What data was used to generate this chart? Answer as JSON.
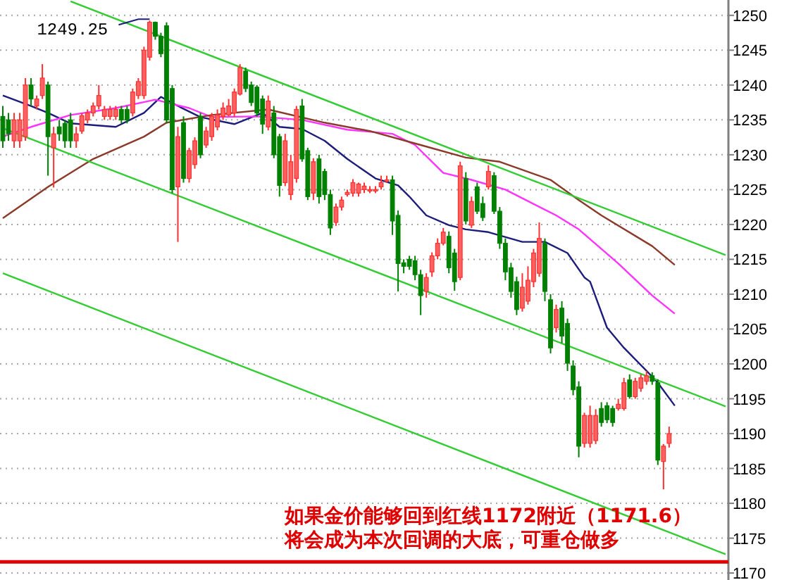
{
  "chart_data": {
    "type": "candlestick",
    "categories": [
      null,
      null,
      null,
      null,
      null,
      null,
      null,
      null,
      null,
      null,
      null,
      null,
      null,
      null,
      null,
      null,
      null,
      null,
      null,
      null,
      null,
      null,
      null,
      null,
      null,
      null,
      null,
      null,
      null,
      null,
      null,
      null,
      null,
      null,
      null,
      null,
      null,
      null,
      null,
      null,
      null,
      null,
      null,
      null,
      null,
      null,
      null,
      null,
      null,
      null,
      null,
      null,
      null,
      null,
      null,
      null,
      null,
      null,
      null,
      null,
      null,
      null,
      null,
      null,
      null,
      null,
      null,
      null,
      null,
      null,
      null,
      null,
      null,
      null,
      null,
      null,
      null,
      null,
      null,
      null,
      null,
      null,
      null,
      null,
      null,
      null,
      null,
      null,
      null,
      null,
      null,
      null,
      null,
      null,
      null,
      null,
      null,
      null,
      null,
      null,
      null,
      null,
      null,
      null,
      null,
      null,
      null,
      null,
      null,
      null,
      null,
      null,
      null,
      null,
      null,
      null,
      null,
      null,
      null,
      null,
      null,
      null,
      null,
      null,
      null,
      null,
      null,
      null,
      null
    ],
    "ohlc": [
      [
        1235.5,
        1237,
        1231,
        1232
      ],
      [
        1235,
        1236,
        1232,
        1233
      ],
      [
        1232,
        1236,
        1231,
        1235
      ],
      [
        1232,
        1236,
        1231,
        1235
      ],
      [
        1232.6,
        1241,
        1232,
        1240
      ],
      [
        1240,
        1241,
        1237,
        1238
      ],
      [
        1237,
        1238.5,
        1236.5,
        1238
      ],
      [
        1238.5,
        1243,
        1238,
        1241
      ],
      [
        1240,
        1240.5,
        1227,
        1232.6
      ],
      [
        1231,
        1234,
        1225.3,
        1233
      ],
      [
        1234,
        1235,
        1232,
        1233
      ],
      [
        1234.5,
        1235,
        1231,
        1232
      ],
      [
        1235,
        1236,
        1231,
        1232
      ],
      [
        1232,
        1234,
        1231,
        1233
      ],
      [
        1233.4,
        1236,
        1233,
        1235.6
      ],
      [
        1235,
        1236.5,
        1234.5,
        1236
      ],
      [
        1236,
        1237.5,
        1235.5,
        1237
      ],
      [
        1237,
        1240,
        1236.5,
        1238.5
      ],
      [
        1235.5,
        1237,
        1235,
        1236.5
      ],
      [
        1235.5,
        1237,
        1235,
        1236.5
      ],
      [
        1235.5,
        1237,
        1235,
        1236.5
      ],
      [
        1236.5,
        1237,
        1234.5,
        1235
      ],
      [
        1236.5,
        1237,
        1234.5,
        1235
      ],
      [
        1236,
        1239.5,
        1235.5,
        1239
      ],
      [
        1238.5,
        1241,
        1238,
        1240.5
      ],
      [
        1238.5,
        1245.5,
        1238,
        1245
      ],
      [
        1244,
        1249.25,
        1243.5,
        1249
      ],
      [
        1249,
        1249.1,
        1246.5,
        1247
      ],
      [
        1247,
        1247.5,
        1244,
        1244.5
      ],
      [
        1248.5,
        1249,
        1234.5,
        1235
      ],
      [
        1239.5,
        1240,
        1224.5,
        1225
      ],
      [
        1225.4,
        1234,
        1217.5,
        1232.6
      ],
      [
        1234.6,
        1235.5,
        1226,
        1226.6
      ],
      [
        1226.6,
        1231,
        1226,
        1230.6
      ],
      [
        1228.6,
        1232.5,
        1228,
        1232
      ],
      [
        1235.5,
        1236,
        1229.5,
        1230
      ],
      [
        1231.4,
        1234,
        1231,
        1233.4
      ],
      [
        1232.6,
        1236,
        1232,
        1235.5
      ],
      [
        1234,
        1236.5,
        1233.5,
        1235.7
      ],
      [
        1235.5,
        1237.5,
        1235,
        1236.7
      ],
      [
        1235.7,
        1238,
        1235.5,
        1237
      ],
      [
        1236,
        1239.5,
        1235.5,
        1239
      ],
      [
        1238.7,
        1243,
        1238.5,
        1242.5
      ],
      [
        1242,
        1242.5,
        1239,
        1239.5
      ],
      [
        1240,
        1240.5,
        1237,
        1237.5
      ],
      [
        1239.7,
        1240,
        1235.5,
        1236
      ],
      [
        1238,
        1238.5,
        1233,
        1234.4
      ],
      [
        1234,
        1238.5,
        1233.5,
        1237.7
      ],
      [
        1236,
        1237,
        1229.5,
        1230
      ],
      [
        1232.6,
        1233,
        1224,
        1225.6
      ],
      [
        1226,
        1233,
        1225.5,
        1232
      ],
      [
        1224.3,
        1230,
        1223.5,
        1229
      ],
      [
        1226.6,
        1237,
        1226,
        1236.5
      ],
      [
        1237,
        1238,
        1229,
        1229.4
      ],
      [
        1230.6,
        1231,
        1223.5,
        1224
      ],
      [
        1224.5,
        1229.5,
        1223.5,
        1229
      ],
      [
        1229.4,
        1230,
        1223,
        1224
      ],
      [
        1227.6,
        1228,
        1223.5,
        1224.3
      ],
      [
        1224.3,
        1225,
        1218.5,
        1219.5
      ],
      [
        1220.3,
        1223,
        1219.8,
        1222.5
      ],
      [
        1222.5,
        1224,
        1222,
        1223.5
      ],
      [
        1224.3,
        1225,
        1224,
        1224.6
      ],
      [
        1224.5,
        1226.5,
        1224,
        1226
      ],
      [
        1224.5,
        1226,
        1224,
        1225.8
      ],
      [
        1225,
        1226,
        1224.5,
        1225.5
      ],
      [
        1225,
        1225.5,
        1224.5,
        1225
      ],
      [
        1225,
        1225.5,
        1224.5,
        1225
      ],
      [
        1225.4,
        1227,
        1225,
        1226
      ],
      [
        1226.4,
        1227,
        1226,
        1226.4
      ],
      [
        1226.4,
        1227,
        1218.5,
        1220.5
      ],
      [
        1221.3,
        1222,
        1210.4,
        1214.4
      ],
      [
        1214.5,
        1215,
        1213,
        1214
      ],
      [
        1215,
        1215.5,
        1213.5,
        1214
      ],
      [
        1214.8,
        1215.5,
        1212,
        1212.8
      ],
      [
        1212.8,
        1213.5,
        1207,
        1209.8
      ],
      [
        1210.4,
        1213,
        1209.5,
        1212.4
      ],
      [
        1213.2,
        1216,
        1212.5,
        1215.5
      ],
      [
        1215.5,
        1218,
        1215,
        1217.3
      ],
      [
        1217.3,
        1219.5,
        1217,
        1218.9
      ],
      [
        1218.3,
        1219,
        1213,
        1213.8
      ],
      [
        1215.9,
        1216.5,
        1210.5,
        1211.8
      ],
      [
        1212.4,
        1229,
        1212,
        1228.4
      ],
      [
        1226.6,
        1227.5,
        1220,
        1220.5
      ],
      [
        1219.9,
        1224,
        1219.5,
        1223.3
      ],
      [
        1225.4,
        1226,
        1221.5,
        1221.9
      ],
      [
        1223,
        1224,
        1220.5,
        1221
      ],
      [
        1225.4,
        1228.5,
        1225,
        1227.6
      ],
      [
        1227,
        1227.5,
        1221.5,
        1221.9
      ],
      [
        1221.9,
        1222.5,
        1216.5,
        1217.3
      ],
      [
        1217.3,
        1218,
        1212,
        1213.2
      ],
      [
        1213.8,
        1214.5,
        1209.5,
        1210.4
      ],
      [
        1211.8,
        1212.5,
        1207,
        1207.8
      ],
      [
        1208,
        1213,
        1207.5,
        1211
      ],
      [
        1209,
        1214,
        1208.5,
        1212
      ],
      [
        1211.8,
        1216.5,
        1211,
        1215.9
      ],
      [
        1213,
        1220.3,
        1212.5,
        1218
      ],
      [
        1217.3,
        1218,
        1209,
        1210.4
      ],
      [
        1209.2,
        1210,
        1201.5,
        1202.3
      ],
      [
        1205.2,
        1208.5,
        1204.5,
        1207.8
      ],
      [
        1208,
        1209,
        1203,
        1204
      ],
      [
        1205.8,
        1206.5,
        1199,
        1200.1
      ],
      [
        1199.7,
        1200.5,
        1195.5,
        1196.3
      ],
      [
        1196.7,
        1197.5,
        1186.6,
        1188.2
      ],
      [
        1188.6,
        1193,
        1188,
        1192.6
      ],
      [
        1188.6,
        1194,
        1188,
        1192.6
      ],
      [
        1189,
        1193.5,
        1188.5,
        1192.6
      ],
      [
        1193.6,
        1194.5,
        1191,
        1191.6
      ],
      [
        1194,
        1194.5,
        1191.5,
        1192
      ],
      [
        1193.6,
        1194,
        1191,
        1191.6
      ],
      [
        1193.6,
        1195,
        1193.3,
        1194.2
      ],
      [
        1193.6,
        1198,
        1193.3,
        1197.3
      ],
      [
        1197.7,
        1198.5,
        1195,
        1195.3
      ],
      [
        1195.3,
        1198,
        1195,
        1197.5
      ],
      [
        1196.5,
        1198.5,
        1196,
        1198
      ],
      [
        1197.5,
        1199,
        1197,
        1198.3
      ],
      [
        1198.3,
        1198.8,
        1197,
        1197.5
      ],
      [
        1197.3,
        1197.8,
        1185.5,
        1186.2
      ],
      [
        1186,
        1188.5,
        1182,
        1188.2
      ],
      [
        1188.6,
        1191,
        1188,
        1190
      ],
      null,
      null,
      null,
      null,
      null,
      null,
      null,
      null,
      null,
      null
    ],
    "series": [
      {
        "type": "line",
        "color": "#1c1c7a",
        "values": [
          1238.5,
          null,
          null,
          null,
          null,
          1237,
          null,
          null,
          1236,
          null,
          null,
          null,
          1234.5,
          null,
          null,
          null,
          null,
          null,
          null,
          null,
          1234,
          null,
          null,
          null,
          null,
          1236,
          null,
          null,
          1238.3,
          null,
          null,
          1237,
          null,
          null,
          null,
          1235.4,
          null,
          null,
          null,
          null,
          null,
          1234.4,
          null,
          null,
          null,
          null,
          1236,
          null,
          null,
          1234,
          null,
          null,
          null,
          1233.7,
          null,
          null,
          null,
          1232,
          null,
          null,
          null,
          1229.4,
          null,
          null,
          null,
          null,
          1226.6,
          null,
          null,
          null,
          1225.6,
          null,
          1224,
          null,
          null,
          1221.3,
          null,
          null,
          null,
          1219.9,
          null,
          null,
          1219.3,
          null,
          null,
          null,
          1218.9,
          null,
          null,
          null,
          null,
          null,
          1217.5,
          null,
          null,
          null,
          1217.5,
          null,
          null,
          null,
          1215.9,
          null,
          null,
          1212.4,
          1211.8,
          null,
          null,
          1205.2,
          null,
          null,
          1202.3,
          null,
          null,
          null,
          1199,
          null,
          1197.3,
          null,
          null,
          1194,
          null,
          null,
          null,
          null,
          null,
          null,
          null,
          null,
          null
        ]
      },
      {
        "type": "line",
        "color": "#ff33ff",
        "values": [
          1232.6,
          null,
          null,
          null,
          null,
          1234,
          null,
          null,
          null,
          null,
          null,
          null,
          1235.7,
          null,
          null,
          null,
          null,
          null,
          null,
          null,
          1236.7,
          null,
          null,
          null,
          null,
          null,
          null,
          1237.9,
          null,
          null,
          null,
          null,
          null,
          1236.7,
          null,
          null,
          null,
          1235.4,
          null,
          null,
          null,
          null,
          null,
          null,
          null,
          1235.5,
          null,
          null,
          null,
          null,
          null,
          null,
          null,
          1235,
          null,
          null,
          null,
          null,
          null,
          null,
          null,
          1233.6,
          null,
          null,
          null,
          null,
          null,
          null,
          null,
          1233,
          null,
          null,
          null,
          1231.4,
          null,
          null,
          null,
          null,
          1227.4,
          null,
          null,
          null,
          null,
          1226.4,
          null,
          null,
          null,
          null,
          null,
          1225,
          null,
          null,
          null,
          null,
          null,
          null,
          null,
          null,
          1221.3,
          null,
          null,
          null,
          1219.3,
          null,
          null,
          null,
          null,
          null,
          null,
          1214.4,
          null,
          null,
          null,
          null,
          null,
          1209.8,
          null,
          null,
          null,
          1207.2,
          null,
          null,
          null,
          null,
          null,
          null,
          null,
          null,
          null
        ]
      },
      {
        "type": "line",
        "color": "#8b3a2a",
        "values": [
          1220.9,
          null,
          null,
          null,
          null,
          null,
          null,
          null,
          1225.4,
          null,
          null,
          null,
          null,
          null,
          null,
          null,
          1229.4,
          null,
          null,
          null,
          null,
          null,
          null,
          null,
          null,
          1232.6,
          null,
          null,
          null,
          1234.6,
          null,
          null,
          null,
          null,
          null,
          null,
          null,
          1235.7,
          null,
          null,
          null,
          null,
          null,
          null,
          null,
          null,
          null,
          1236.5,
          null,
          null,
          null,
          null,
          null,
          null,
          null,
          null,
          null,
          1234.6,
          null,
          null,
          null,
          null,
          null,
          null,
          null,
          1233.4,
          null,
          null,
          null,
          null,
          null,
          null,
          null,
          null,
          1231.4,
          null,
          null,
          null,
          null,
          null,
          null,
          null,
          1229.6,
          null,
          null,
          null,
          null,
          null,
          1229,
          null,
          null,
          null,
          null,
          null,
          null,
          null,
          null,
          1226.4,
          null,
          null,
          null,
          null,
          1223.5,
          null,
          null,
          null,
          1221.3,
          null,
          null,
          null,
          null,
          null,
          null,
          null,
          null,
          1216.9,
          null,
          null,
          null,
          1214.2,
          null,
          null,
          null,
          null,
          null,
          null,
          null,
          null,
          null
        ]
      },
      {
        "type": "line",
        "color": "#33cc33",
        "values": [
          null,
          null,
          null,
          null,
          null,
          null,
          null,
          null,
          null,
          null,
          null,
          null,
          1252,
          null,
          null,
          null,
          null,
          null,
          null,
          null,
          null,
          null,
          null,
          null,
          null,
          null,
          null,
          null,
          null,
          null,
          null,
          null,
          null,
          null,
          null,
          null,
          null,
          null,
          null,
          null,
          null,
          null,
          null,
          null,
          null,
          null,
          null,
          null,
          null,
          null,
          null,
          null,
          null,
          null,
          null,
          null,
          null,
          null,
          null,
          null,
          null,
          null,
          null,
          null,
          null,
          null,
          null,
          null,
          null,
          null,
          null,
          null,
          null,
          null,
          null,
          null,
          null,
          null,
          null,
          null,
          null,
          null,
          null,
          null,
          null,
          null,
          null,
          null,
          null,
          null,
          null,
          null,
          null,
          null,
          null,
          null,
          null,
          null,
          null,
          null,
          null,
          null,
          null,
          null,
          null,
          null,
          null,
          null,
          null,
          null,
          null,
          null,
          null,
          null,
          null,
          null,
          null,
          null,
          null,
          null,
          null,
          null,
          null,
          null,
          null,
          null,
          null,
          null,
          1215.6
        ]
      },
      {
        "type": "line",
        "color": "#33cc33",
        "values": [
          1233.8,
          null,
          null,
          null,
          null,
          null,
          null,
          null,
          null,
          null,
          null,
          null,
          null,
          null,
          null,
          null,
          null,
          null,
          null,
          null,
          null,
          null,
          null,
          null,
          null,
          null,
          null,
          null,
          null,
          null,
          null,
          null,
          null,
          null,
          null,
          null,
          null,
          null,
          null,
          null,
          null,
          null,
          null,
          null,
          null,
          null,
          null,
          null,
          null,
          null,
          null,
          null,
          null,
          null,
          null,
          null,
          null,
          null,
          null,
          null,
          null,
          null,
          null,
          null,
          null,
          null,
          null,
          null,
          null,
          null,
          null,
          null,
          null,
          null,
          null,
          null,
          null,
          null,
          null,
          null,
          null,
          null,
          null,
          null,
          null,
          null,
          null,
          null,
          null,
          null,
          null,
          null,
          null,
          null,
          null,
          null,
          null,
          null,
          null,
          null,
          null,
          null,
          null,
          null,
          null,
          null,
          null,
          null,
          null,
          null,
          null,
          null,
          null,
          null,
          null,
          null,
          null,
          null,
          null,
          null,
          null,
          null,
          null,
          null,
          null,
          null,
          null,
          null,
          1193.9
        ]
      },
      {
        "type": "line",
        "color": "#33cc33",
        "values": [
          1213,
          null,
          null,
          null,
          null,
          null,
          null,
          null,
          null,
          null,
          null,
          null,
          null,
          null,
          null,
          null,
          null,
          null,
          null,
          null,
          null,
          null,
          null,
          null,
          null,
          null,
          null,
          null,
          null,
          null,
          null,
          null,
          null,
          null,
          null,
          null,
          null,
          null,
          null,
          null,
          null,
          null,
          null,
          null,
          null,
          null,
          null,
          null,
          null,
          null,
          null,
          null,
          null,
          null,
          null,
          null,
          null,
          null,
          null,
          null,
          null,
          null,
          null,
          null,
          null,
          null,
          null,
          null,
          null,
          null,
          null,
          null,
          null,
          null,
          null,
          null,
          null,
          null,
          null,
          null,
          null,
          null,
          null,
          null,
          null,
          null,
          null,
          null,
          null,
          null,
          null,
          null,
          null,
          null,
          null,
          null,
          null,
          null,
          null,
          null,
          null,
          null,
          null,
          null,
          null,
          null,
          null,
          null,
          null,
          null,
          null,
          null,
          null,
          null,
          null,
          null,
          null,
          null,
          null,
          null,
          null,
          null,
          null,
          null,
          null,
          null,
          null,
          null,
          1172.7
        ]
      }
    ],
    "ylim": [
      1169,
      1252.2
    ],
    "yticks": [
      1170,
      1175,
      1180,
      1185,
      1190,
      1195,
      1200,
      1205,
      1210,
      1215,
      1220,
      1225,
      1230,
      1235,
      1240,
      1245,
      1250
    ],
    "grid": "y",
    "tick_labels": "y",
    "ref_lines": [
      {
        "axis": "y",
        "value": 1171.6,
        "color": "#e00000"
      }
    ],
    "annotations": [
      "1249.25",
      "如果金价能够回到红线1172附近（1171.6）",
      "将会成为本次回调的大底，可重仓做多"
    ]
  }
}
